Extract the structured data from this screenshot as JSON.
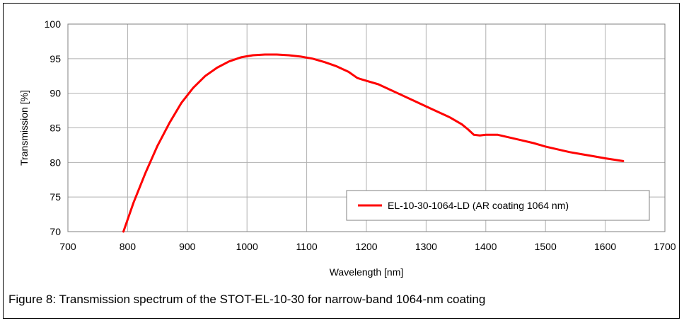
{
  "chart_data": {
    "type": "line",
    "xlabel": "Wavelength [nm]",
    "ylabel": "Transmission [%]",
    "xlim": [
      700,
      1700
    ],
    "ylim": [
      70,
      100
    ],
    "xticks": [
      700,
      800,
      900,
      1000,
      1100,
      1200,
      1300,
      1400,
      1500,
      1600,
      1700
    ],
    "yticks": [
      70,
      75,
      80,
      85,
      90,
      95,
      100
    ],
    "grid": true,
    "legend_position": "bottom-right",
    "series": [
      {
        "name": "EL-10-30-1064-LD (AR coating 1064 nm)",
        "color": "#ff0000",
        "x": [
          793,
          810,
          830,
          850,
          870,
          890,
          910,
          930,
          950,
          970,
          990,
          1010,
          1030,
          1050,
          1070,
          1090,
          1110,
          1130,
          1150,
          1170,
          1185,
          1200,
          1220,
          1250,
          1280,
          1310,
          1340,
          1360,
          1370,
          1380,
          1390,
          1400,
          1420,
          1440,
          1460,
          1480,
          1500,
          1520,
          1540,
          1560,
          1580,
          1600,
          1630
        ],
        "y": [
          70.0,
          74.2,
          78.5,
          82.4,
          85.7,
          88.6,
          90.8,
          92.5,
          93.7,
          94.6,
          95.2,
          95.5,
          95.6,
          95.6,
          95.5,
          95.3,
          95.0,
          94.5,
          93.9,
          93.1,
          92.2,
          91.8,
          91.3,
          90.1,
          88.9,
          87.7,
          86.5,
          85.5,
          84.8,
          84.0,
          83.9,
          84.0,
          84.0,
          83.6,
          83.2,
          82.8,
          82.3,
          81.9,
          81.5,
          81.2,
          80.9,
          80.6,
          80.2
        ]
      }
    ]
  },
  "caption": "Figure 8: Transmission spectrum of the STOT-EL-10-30 for narrow-band 1064-nm coating"
}
